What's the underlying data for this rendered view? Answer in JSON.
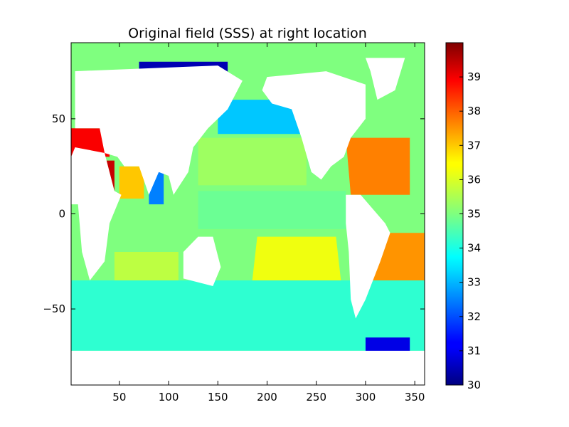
{
  "chart_data": {
    "type": "heatmap",
    "title": "Original field (SSS) at right location",
    "xlabel": "",
    "ylabel": "",
    "xlim": [
      1,
      360
    ],
    "ylim": [
      -90,
      90
    ],
    "x_ticks": [
      50,
      100,
      150,
      200,
      250,
      300,
      350
    ],
    "x_tick_labels": [
      "50",
      "100",
      "150",
      "200",
      "250",
      "300",
      "350"
    ],
    "y_ticks": [
      50,
      0,
      -50
    ],
    "y_tick_labels": [
      "50",
      "0",
      "−50"
    ],
    "colorbar": {
      "colormap": "jet",
      "range": [
        30,
        40
      ],
      "ticks": [
        30,
        31,
        32,
        33,
        34,
        35,
        36,
        37,
        38,
        39
      ],
      "tick_labels": [
        "30",
        "31",
        "32",
        "33",
        "34",
        "35",
        "36",
        "37",
        "38",
        "39"
      ]
    },
    "grid": false,
    "masked_color": "#ffffff",
    "regions": {
      "north_atlantic_subtropical_max": 37.5,
      "south_atlantic_subtropical_max": 37.3,
      "mediterranean": 38.8,
      "red_sea": 39.3,
      "arabian_sea": 36.8,
      "bay_of_bengal": 32.5,
      "arctic_margin": 30.5,
      "hudson_bay": 30.5,
      "weddell_sea": 31.0,
      "south_pacific_subtropical": 36.1,
      "north_pacific_subtropical": 35.3,
      "south_indian_subtropical": 35.6,
      "southern_ocean": 34.2,
      "equatorial_pacific": 34.8,
      "north_pacific_subpolar": 33.2
    }
  }
}
